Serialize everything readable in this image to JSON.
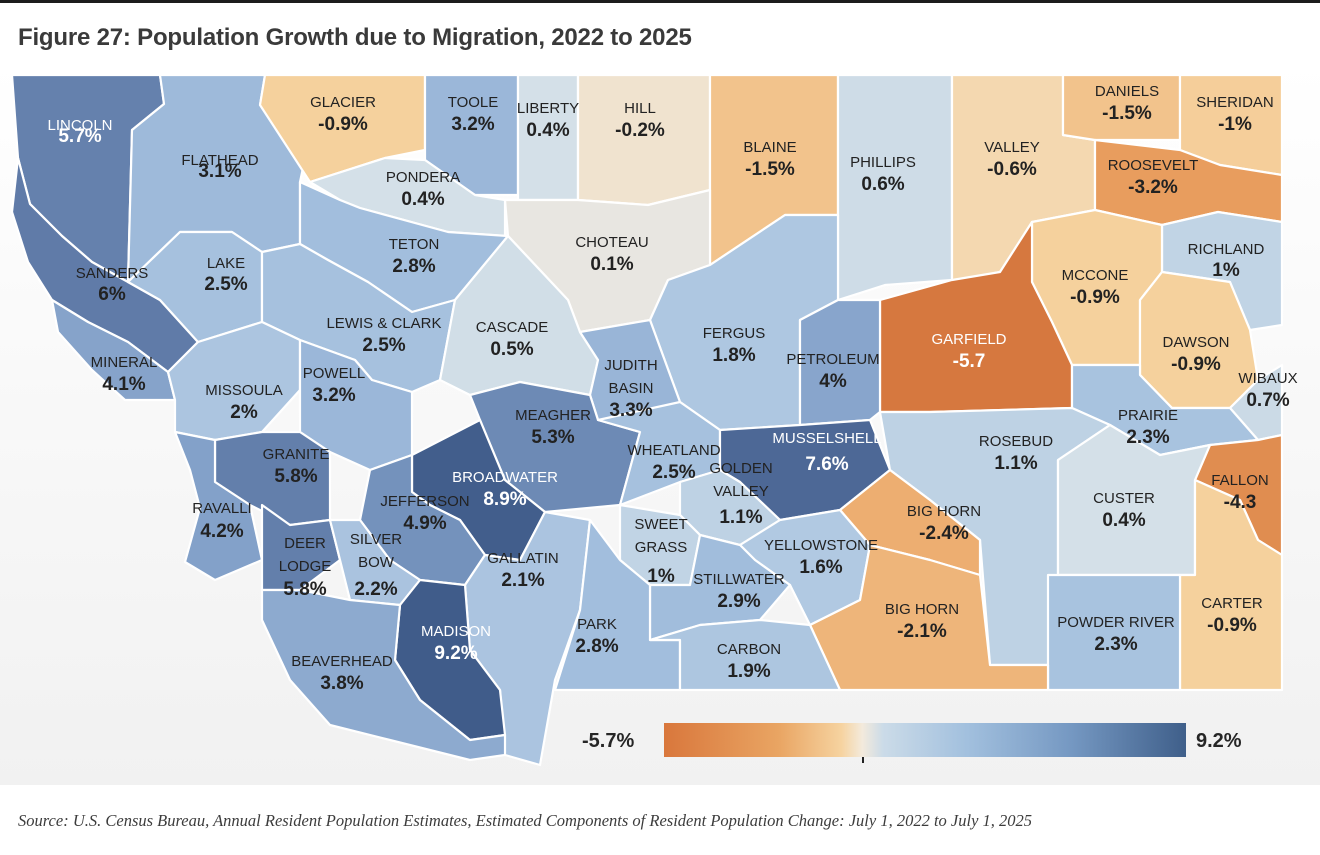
{
  "title": "Figure 27: Population Growth due to Migration, 2022 to 2025",
  "legend": {
    "min_label": "-5.7%",
    "max_label": "9.2%",
    "min_value": -5.7,
    "max_value": 9.2
  },
  "source": "Source: U.S. Census Bureau, Annual Resident Population Estimates, Estimated Components of Resident Population Change: July 1, 2022 to July 1, 2025",
  "counties": [
    {
      "name": "LINCOLN",
      "value_label": "5.7%",
      "value": 5.7
    },
    {
      "name": "FLATHEAD",
      "value_label": "3.1%",
      "value": 3.1
    },
    {
      "name": "GLACIER",
      "value_label": "-0.9%",
      "value": -0.9
    },
    {
      "name": "TOOLE",
      "value_label": "3.2%",
      "value": 3.2
    },
    {
      "name": "LIBERTY",
      "value_label": "0.4%",
      "value": 0.4
    },
    {
      "name": "HILL",
      "value_label": "-0.2%",
      "value": -0.2
    },
    {
      "name": "BLAINE",
      "value_label": "-1.5%",
      "value": -1.5
    },
    {
      "name": "PHILLIPS",
      "value_label": "0.6%",
      "value": 0.6
    },
    {
      "name": "VALLEY",
      "value_label": "-0.6%",
      "value": -0.6
    },
    {
      "name": "DANIELS",
      "value_label": "-1.5%",
      "value": -1.5
    },
    {
      "name": "SHERIDAN",
      "value_label": "-1%",
      "value": -1.0
    },
    {
      "name": "ROOSEVELT",
      "value_label": "-3.2%",
      "value": -3.2
    },
    {
      "name": "PONDERA",
      "value_label": "0.4%",
      "value": 0.4
    },
    {
      "name": "TETON",
      "value_label": "2.8%",
      "value": 2.8
    },
    {
      "name": "CHOTEAU",
      "value_label": "0.1%",
      "value": 0.1
    },
    {
      "name": "SANDERS",
      "value_label": "6%",
      "value": 6.0
    },
    {
      "name": "LAKE",
      "value_label": "2.5%",
      "value": 2.5
    },
    {
      "name": "RICHLAND",
      "value_label": "1%",
      "value": 1.0
    },
    {
      "name": "MCCONE",
      "value_label": "-0.9%",
      "value": -0.9
    },
    {
      "name": "GARFIELD",
      "value_label": "-5.7",
      "value": -5.7
    },
    {
      "name": "LEWIS & CLARK",
      "value_label": "2.5%",
      "value": 2.5
    },
    {
      "name": "CASCADE",
      "value_label": "0.5%",
      "value": 0.5
    },
    {
      "name": "FERGUS",
      "value_label": "1.8%",
      "value": 1.8
    },
    {
      "name": "PETROLEUM",
      "value_label": "4%",
      "value": 4.0
    },
    {
      "name": "DAWSON",
      "value_label": "-0.9%",
      "value": -0.9
    },
    {
      "name": "MINERAL",
      "value_label": "4.1%",
      "value": 4.1
    },
    {
      "name": "MISSOULA",
      "value_label": "2%",
      "value": 2.0
    },
    {
      "name": "POWELL",
      "value_label": "3.2%",
      "value": 3.2
    },
    {
      "name": "JUDITH BASIN",
      "value_label": "3.3%",
      "value": 3.3
    },
    {
      "name": "WIBAUX",
      "value_label": "0.7%",
      "value": 0.7
    },
    {
      "name": "PRAIRIE",
      "value_label": "2.3%",
      "value": 2.3
    },
    {
      "name": "MEAGHER",
      "value_label": "5.3%",
      "value": 5.3
    },
    {
      "name": "GRANITE",
      "value_label": "5.8%",
      "value": 5.8
    },
    {
      "name": "WHEATLAND",
      "value_label": "2.5%",
      "value": 2.5
    },
    {
      "name": "MUSSELSHELL",
      "value_label": "7.6%",
      "value": 7.6
    },
    {
      "name": "ROSEBUD",
      "value_label": "1.1%",
      "value": 1.1
    },
    {
      "name": "FALLON",
      "value_label": "-4.3",
      "value": -4.3
    },
    {
      "name": "BROADWATER",
      "value_label": "8.9%",
      "value": 8.9
    },
    {
      "name": "GOLDEN VALLEY",
      "value_label": "1.1%",
      "value": 1.1
    },
    {
      "name": "RAVALLI",
      "value_label": "4.2%",
      "value": 4.2
    },
    {
      "name": "JEFFERSON",
      "value_label": "4.9%",
      "value": 4.9
    },
    {
      "name": "CUSTER",
      "value_label": "0.4%",
      "value": 0.4
    },
    {
      "name": "BIG HORN",
      "value_label": "-2.4%",
      "value": -2.4
    },
    {
      "name": "SWEET GRASS",
      "value_label": "1%",
      "value": 1.0
    },
    {
      "name": "DEER LODGE",
      "value_label": "5.8%",
      "value": 5.8
    },
    {
      "name": "SILVER BOW",
      "value_label": "2.2%",
      "value": 2.2
    },
    {
      "name": "GALLATIN",
      "value_label": "2.1%",
      "value": 2.1
    },
    {
      "name": "YELLOWSTONE",
      "value_label": "1.6%",
      "value": 1.6
    },
    {
      "name": "STILLWATER",
      "value_label": "2.9%",
      "value": 2.9
    },
    {
      "name": "CARTER",
      "value_label": "-0.9%",
      "value": -0.9
    },
    {
      "name": "POWDER RIVER",
      "value_label": "2.3%",
      "value": 2.3
    },
    {
      "name": "BIG HORN",
      "value_label": "-2.1%",
      "value": -2.1
    },
    {
      "name": "MADISON",
      "value_label": "9.2%",
      "value": 9.2
    },
    {
      "name": "PARK",
      "value_label": "2.8%",
      "value": 2.8
    },
    {
      "name": "CARBON",
      "value_label": "1.9%",
      "value": 1.9
    },
    {
      "name": "BEAVERHEAD",
      "value_label": "3.8%",
      "value": 3.8
    }
  ]
}
